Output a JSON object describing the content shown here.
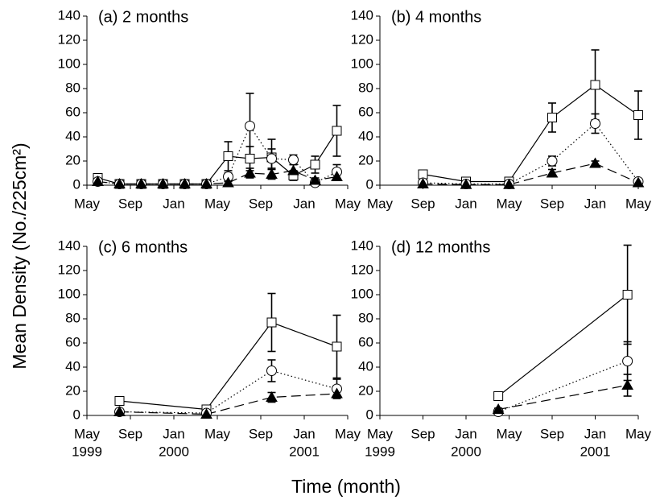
{
  "ylabel": "Mean Density (No./225cm²)",
  "xlabel": "Time (month)",
  "chart_data": [
    {
      "type": "line",
      "title": "(a) 2 months",
      "x": [
        "1999-06",
        "1999-08",
        "1999-10",
        "1999-12",
        "2000-02",
        "2000-04",
        "2000-06",
        "2000-08",
        "2000-10",
        "2000-12",
        "2001-02",
        "2001-04"
      ],
      "series": [
        {
          "marker": "square",
          "line_style": "solid",
          "color": "#000000",
          "values": [
            6,
            1,
            1,
            1,
            1,
            1,
            24,
            22,
            23,
            8,
            17,
            45
          ],
          "errors": [
            2,
            1,
            1,
            1,
            1,
            1,
            12,
            10,
            15,
            4,
            7,
            21
          ]
        },
        {
          "marker": "circle",
          "line_style": "dotted",
          "color": "#000000",
          "values": [
            3,
            1,
            1,
            1,
            1,
            1,
            7,
            49,
            22,
            21,
            2,
            11
          ],
          "errors": [
            2,
            1,
            1,
            1,
            1,
            1,
            3,
            27,
            8,
            4,
            1,
            6
          ]
        },
        {
          "marker": "triangle",
          "line_style": "dashed",
          "color": "#000000",
          "values": [
            3,
            1,
            1,
            1,
            1,
            1,
            2,
            10,
            9,
            12,
            4,
            7
          ],
          "errors": [
            1,
            1,
            1,
            1,
            1,
            1,
            1,
            4,
            4,
            5,
            2,
            2
          ]
        }
      ],
      "xlim": [
        "1999-05",
        "2001-05"
      ],
      "xticks": [
        {
          "value": "1999-05",
          "label": "May"
        },
        {
          "value": "1999-09",
          "label": "Sep"
        },
        {
          "value": "2000-01",
          "label": "Jan"
        },
        {
          "value": "2000-05",
          "label": "May"
        },
        {
          "value": "2000-09",
          "label": "Sep"
        },
        {
          "value": "2001-01",
          "label": "Jan"
        },
        {
          "value": "2001-05",
          "label": "May"
        }
      ],
      "ylim": [
        0,
        140
      ],
      "yticks": [
        0,
        20,
        40,
        60,
        80,
        100,
        120,
        140
      ]
    },
    {
      "type": "line",
      "title": "(b) 4 months",
      "x": [
        "1999-09",
        "2000-01",
        "2000-05",
        "2000-09",
        "2001-01",
        "2001-05"
      ],
      "series": [
        {
          "marker": "square",
          "line_style": "solid",
          "color": "#000000",
          "values": [
            9,
            3,
            3,
            56,
            83,
            58
          ],
          "errors": [
            3,
            1,
            1,
            12,
            29,
            20
          ]
        },
        {
          "marker": "circle",
          "line_style": "dotted",
          "color": "#000000",
          "values": [
            2,
            1,
            1,
            20,
            51,
            3
          ],
          "errors": [
            1,
            0.5,
            0.5,
            4,
            8,
            1
          ]
        },
        {
          "marker": "triangle",
          "line_style": "dashed",
          "color": "#000000",
          "values": [
            1,
            0.5,
            0.5,
            10,
            18,
            2
          ],
          "errors": [
            0.5,
            0.5,
            0.5,
            3,
            2,
            1
          ]
        }
      ],
      "xlim": [
        "1999-05",
        "2001-05"
      ],
      "xticks": [
        {
          "value": "1999-05",
          "label": "May"
        },
        {
          "value": "1999-09",
          "label": "Sep"
        },
        {
          "value": "2000-01",
          "label": "Jan"
        },
        {
          "value": "2000-05",
          "label": "May"
        },
        {
          "value": "2000-09",
          "label": "Sep"
        },
        {
          "value": "2001-01",
          "label": "Jan"
        },
        {
          "value": "2001-05",
          "label": "May"
        }
      ],
      "ylim": [
        0,
        140
      ],
      "yticks": [
        0,
        20,
        40,
        60,
        80,
        100,
        120,
        140
      ]
    },
    {
      "type": "line",
      "title": "(c) 6 months",
      "x": [
        "1999-08",
        "2000-04",
        "2000-10",
        "2001-04"
      ],
      "series": [
        {
          "marker": "square",
          "line_style": "solid",
          "color": "#000000",
          "values": [
            12,
            5,
            77,
            57
          ],
          "errors": [
            3,
            1,
            24,
            26
          ]
        },
        {
          "marker": "circle",
          "line_style": "dotted",
          "color": "#000000",
          "values": [
            3,
            2,
            37,
            22
          ],
          "errors": [
            1,
            0.5,
            9,
            8
          ]
        },
        {
          "marker": "triangle",
          "line_style": "dashed",
          "color": "#000000",
          "values": [
            3,
            1,
            15,
            18
          ],
          "errors": [
            1,
            0.5,
            4,
            2
          ]
        }
      ],
      "xlim": [
        "1999-05",
        "2001-05"
      ],
      "xticks": [
        {
          "value": "1999-05",
          "label": "May"
        },
        {
          "value": "1999-09",
          "label": "Sep"
        },
        {
          "value": "2000-01",
          "label": "Jan"
        },
        {
          "value": "2000-05",
          "label": "May"
        },
        {
          "value": "2000-09",
          "label": "Sep"
        },
        {
          "value": "2001-01",
          "label": "Jan"
        },
        {
          "value": "2001-05",
          "label": "May"
        }
      ],
      "xtick_years": [
        {
          "value": "1999-05",
          "label": "1999"
        },
        {
          "value": "2000-01",
          "label": "2000"
        },
        {
          "value": "2001-01",
          "label": "2001"
        }
      ],
      "ylim": [
        0,
        140
      ],
      "yticks": [
        0,
        20,
        40,
        60,
        80,
        100,
        120,
        140
      ]
    },
    {
      "type": "line",
      "title": "(d) 12 months",
      "x": [
        "2000-04",
        "2001-04"
      ],
      "series": [
        {
          "marker": "square",
          "line_style": "solid",
          "color": "#000000",
          "values": [
            16,
            100
          ],
          "errors": [
            3,
            41
          ]
        },
        {
          "marker": "circle",
          "line_style": "dotted",
          "color": "#000000",
          "values": [
            3,
            45
          ],
          "errors": [
            1,
            16
          ]
        },
        {
          "marker": "triangle",
          "line_style": "dashed",
          "color": "#000000",
          "values": [
            5,
            25
          ],
          "errors": [
            1,
            9
          ]
        }
      ],
      "xlim": [
        "1999-05",
        "2001-05"
      ],
      "xticks": [
        {
          "value": "1999-05",
          "label": "May"
        },
        {
          "value": "1999-09",
          "label": "Sep"
        },
        {
          "value": "2000-01",
          "label": "Jan"
        },
        {
          "value": "2000-05",
          "label": "May"
        },
        {
          "value": "2000-09",
          "label": "Sep"
        },
        {
          "value": "2001-01",
          "label": "Jan"
        },
        {
          "value": "2001-05",
          "label": "May"
        }
      ],
      "xtick_years": [
        {
          "value": "1999-05",
          "label": "1999"
        },
        {
          "value": "2000-01",
          "label": "2000"
        },
        {
          "value": "2001-01",
          "label": "2001"
        }
      ],
      "ylim": [
        0,
        140
      ],
      "yticks": [
        0,
        20,
        40,
        60,
        80,
        100,
        120,
        140
      ]
    }
  ]
}
